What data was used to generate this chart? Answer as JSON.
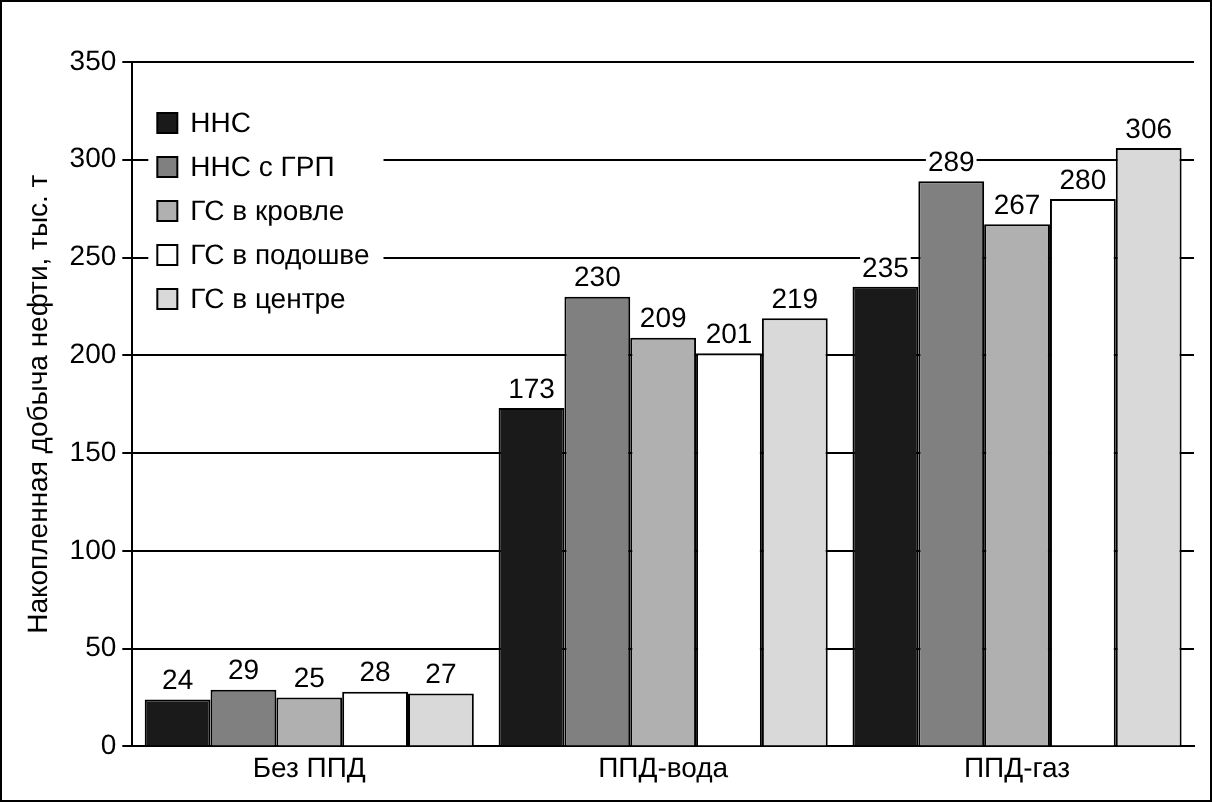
{
  "chart_data": {
    "type": "bar",
    "ylabel": "Накопленная добыча нефти, тыс. т",
    "categories": [
      "Без ППД",
      "ППД-вода",
      "ППД-газ"
    ],
    "series": [
      {
        "name": "ННС",
        "color": "#1a1a1a",
        "values": [
          24,
          173,
          235
        ]
      },
      {
        "name": "ННС с ГРП",
        "color": "#808080",
        "values": [
          29,
          230,
          289
        ]
      },
      {
        "name": "ГС в кровле",
        "color": "#b0b0b0",
        "values": [
          25,
          209,
          267
        ]
      },
      {
        "name": "ГС в подошве",
        "color": "#ffffff",
        "values": [
          28,
          201,
          280
        ]
      },
      {
        "name": "ГС в центре",
        "color": "#d9d9d9",
        "values": [
          27,
          219,
          306
        ]
      }
    ],
    "ylim": [
      0,
      350
    ],
    "yticks": [
      0,
      50,
      100,
      150,
      200,
      250,
      300,
      350
    ],
    "grid": "y",
    "legend": "top left",
    "data_labels": true
  }
}
